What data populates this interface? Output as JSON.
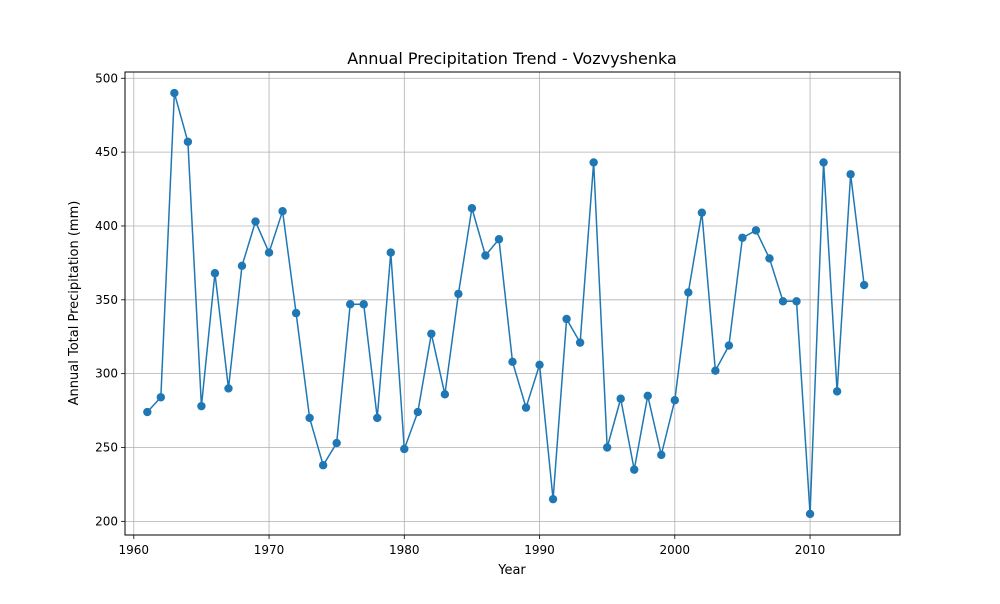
{
  "chart_data": {
    "type": "line",
    "title": "Annual Precipitation Trend - Vozvyshenka",
    "xlabel": "Year",
    "ylabel": "Annual Total Precipitation (mm)",
    "xlim": [
      1959.35,
      2016.65
    ],
    "ylim": [
      190.75,
      504.25
    ],
    "xticks": [
      1960,
      1970,
      1980,
      1990,
      2000,
      2010
    ],
    "yticks": [
      200,
      250,
      300,
      350,
      400,
      450,
      500
    ],
    "grid": true,
    "color": "#1f77b4",
    "marker": "circle",
    "series": [
      {
        "x": [
          1961,
          1962,
          1963,
          1964,
          1965,
          1966,
          1967,
          1968,
          1969,
          1970,
          1971,
          1972,
          1973,
          1974,
          1975,
          1976,
          1977,
          1978,
          1979,
          1980,
          1981,
          1982,
          1983,
          1984,
          1985,
          1986,
          1987,
          1988,
          1989,
          1990,
          1991,
          1992,
          1993,
          1994,
          1995,
          1996,
          1997,
          1998,
          1999,
          2000,
          2001,
          2002,
          2003,
          2004,
          2005,
          2006,
          2007,
          2008,
          2009,
          2010,
          2011,
          2012,
          2013,
          2014
        ],
        "values": [
          274,
          284,
          490,
          457,
          278,
          368,
          290,
          373,
          403,
          382,
          410,
          341,
          270,
          238,
          253,
          347,
          347,
          270,
          382,
          249,
          274,
          327,
          286,
          354,
          412,
          380,
          391,
          308,
          277,
          306,
          215,
          337,
          321,
          443,
          250,
          283,
          235,
          285,
          245,
          282,
          355,
          409,
          302,
          319,
          392,
          397,
          378,
          349,
          349,
          205,
          443,
          288,
          435,
          360
        ]
      }
    ]
  }
}
